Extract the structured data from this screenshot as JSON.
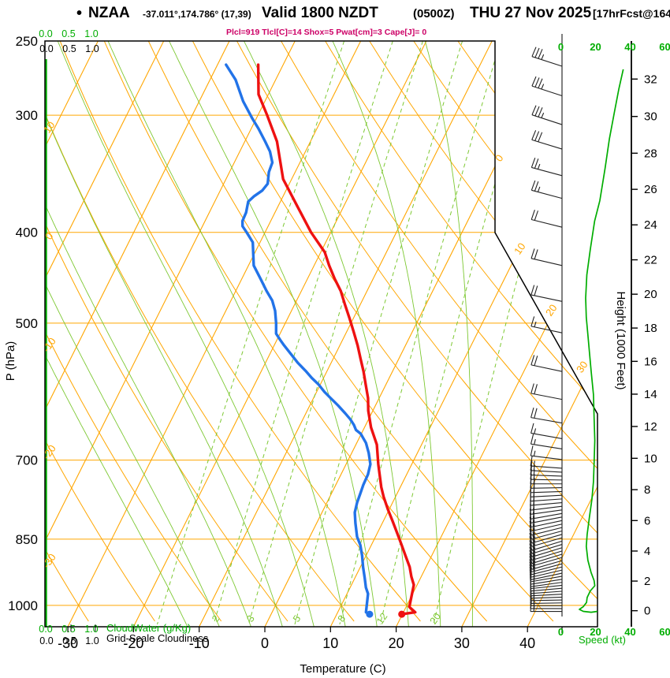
{
  "header": {
    "bullet": "•",
    "station": "NZAA",
    "coords": "-37.011°,174.786° (17,39)",
    "valid": "Valid 1800 NZDT",
    "valid_z": "(0500Z)",
    "date": "THU 27 Nov 2025",
    "fcst": "[17hrFcst@1648z]",
    "indices": "Plcl=919 Tlcl[C]=14 Shox=5 Pwat[cm]=3 Cape[J]= 0"
  },
  "labels": {
    "pressure_axis": "P (hPa)",
    "temperature_axis": "Temperature (C)",
    "height_axis": "Height (1000 Feet)",
    "speed_axis": "Speed (kt)",
    "cloudwater": "CloudWater (g/Kg)",
    "cloudiness": "Grid-Scale Cloudiness"
  },
  "axes": {
    "pressure_ticks": [
      250,
      300,
      400,
      500,
      700,
      850,
      1000
    ],
    "temp_ticks": [
      -30,
      -20,
      -10,
      0,
      10,
      20,
      30,
      40
    ],
    "height_ticks": [
      0,
      2,
      4,
      6,
      8,
      10,
      12,
      14,
      16,
      18,
      20,
      22,
      24,
      26,
      28,
      30,
      32
    ],
    "speed_ticks": [
      0,
      20,
      40,
      60
    ],
    "cloud_scale": [
      "0.0",
      "0.5",
      "1.0"
    ]
  },
  "grid": {
    "isotherms_c": [
      -100,
      -90,
      -80,
      -70,
      -60,
      -50,
      -40,
      -30,
      -20,
      -10,
      0,
      10,
      20,
      30,
      40
    ],
    "isotherm_edge_labels": [
      0,
      10,
      20,
      30
    ],
    "dry_adiabats_c": [
      -30,
      -20,
      -10,
      0,
      10,
      20,
      30,
      40,
      50,
      60,
      70,
      80,
      90,
      100,
      110,
      120
    ],
    "dry_adiabat_labels": [
      10,
      0,
      -10,
      -20,
      -30
    ],
    "moist_adiabats_c": [
      -15,
      -10,
      -5,
      0,
      5,
      10,
      15,
      20,
      25,
      30
    ],
    "mixing_ratio_gkg": [
      1,
      2,
      3,
      5,
      8,
      12,
      20
    ],
    "mixing_ratio_labels": [
      2,
      3,
      5,
      8,
      12,
      20
    ]
  },
  "colors": {
    "orange": "#ffa600",
    "lightgreen": "#7dc832",
    "green": "#00ad00",
    "red": "#ee1111",
    "blue": "#2273e8",
    "magenta": "#cc0066",
    "barb": "#222222",
    "black": "#000000"
  },
  "chart_data": {
    "type": "line",
    "station": "NZAA",
    "pressure_range_hpa": [
      250,
      1052
    ],
    "surface": {
      "p": 1022,
      "t_c": 19.9,
      "td_c": 15.0
    },
    "temperature_C": [
      [
        265,
        -43.8
      ],
      [
        285,
        -41.5
      ],
      [
        300,
        -38.6
      ],
      [
        320,
        -35.1
      ],
      [
        351,
        -31.3
      ],
      [
        375,
        -27.1
      ],
      [
        400,
        -23.0
      ],
      [
        420,
        -19.4
      ],
      [
        434,
        -17.7
      ],
      [
        448,
        -15.9
      ],
      [
        462,
        -14.0
      ],
      [
        477,
        -12.4
      ],
      [
        494,
        -10.6
      ],
      [
        510,
        -9.0
      ],
      [
        528,
        -7.3
      ],
      [
        546,
        -5.8
      ],
      [
        563,
        -4.4
      ],
      [
        581,
        -3.1
      ],
      [
        601,
        -1.7
      ],
      [
        620,
        -0.7
      ],
      [
        646,
        1.0
      ],
      [
        674,
        3.2
      ],
      [
        707,
        4.9
      ],
      [
        748,
        7.1
      ],
      [
        766,
        8.2
      ],
      [
        790,
        9.8
      ],
      [
        813,
        11.4
      ],
      [
        837,
        13.0
      ],
      [
        862,
        14.6
      ],
      [
        885,
        16.0
      ],
      [
        910,
        17.5
      ],
      [
        932,
        18.5
      ],
      [
        951,
        19.5
      ],
      [
        1004,
        20.5
      ],
      [
        1017,
        21.8
      ],
      [
        1022,
        19.9
      ]
    ],
    "dewpoint_C": [
      [
        265,
        -48.7
      ],
      [
        275,
        -46.1
      ],
      [
        290,
        -43.3
      ],
      [
        302,
        -40.7
      ],
      [
        310,
        -38.9
      ],
      [
        320,
        -36.9
      ],
      [
        328,
        -35.4
      ],
      [
        337,
        -34.2
      ],
      [
        345,
        -34.0
      ],
      [
        355,
        -33.3
      ],
      [
        361,
        -33.6
      ],
      [
        366,
        -34.4
      ],
      [
        371,
        -34.9
      ],
      [
        381,
        -34.4
      ],
      [
        389,
        -34.3
      ],
      [
        394,
        -33.9
      ],
      [
        400,
        -32.8
      ],
      [
        410,
        -31.1
      ],
      [
        434,
        -29.2
      ],
      [
        448,
        -27.2
      ],
      [
        462,
        -25.3
      ],
      [
        473,
        -23.7
      ],
      [
        485,
        -22.5
      ],
      [
        500,
        -21.4
      ],
      [
        513,
        -20.6
      ],
      [
        521,
        -19.5
      ],
      [
        528,
        -18.5
      ],
      [
        536,
        -17.3
      ],
      [
        551,
        -15.1
      ],
      [
        562,
        -13.3
      ],
      [
        572,
        -11.8
      ],
      [
        581,
        -10.3
      ],
      [
        592,
        -8.8
      ],
      [
        601,
        -7.4
      ],
      [
        612,
        -5.7
      ],
      [
        624,
        -4.0
      ],
      [
        633,
        -2.8
      ],
      [
        642,
        -1.8
      ],
      [
        650,
        -1.1
      ],
      [
        656,
        -0.1
      ],
      [
        671,
        1.4
      ],
      [
        688,
        2.6
      ],
      [
        707,
        3.7
      ],
      [
        725,
        4.1
      ],
      [
        744,
        4.2
      ],
      [
        760,
        4.4
      ],
      [
        777,
        4.6
      ],
      [
        796,
        5.0
      ],
      [
        817,
        5.9
      ],
      [
        845,
        7.2
      ],
      [
        862,
        8.3
      ],
      [
        885,
        9.4
      ],
      [
        910,
        10.4
      ],
      [
        935,
        11.5
      ],
      [
        957,
        12.4
      ],
      [
        972,
        13.2
      ],
      [
        1017,
        14.3
      ],
      [
        1022,
        15.0
      ]
    ],
    "wind_barbs_p_kt_tilt": [
      [
        266,
        35,
        18
      ],
      [
        286,
        35,
        18
      ],
      [
        307,
        35,
        18
      ],
      [
        326,
        30,
        17
      ],
      [
        348,
        25,
        15
      ],
      [
        368,
        25,
        15
      ],
      [
        395,
        20,
        14
      ],
      [
        434,
        20,
        13
      ],
      [
        474,
        20,
        12
      ],
      [
        512,
        15,
        12
      ],
      [
        563,
        20,
        12
      ],
      [
        603,
        20,
        11
      ],
      [
        639,
        20,
        10
      ],
      [
        664,
        15,
        10
      ],
      [
        681,
        15,
        9
      ],
      [
        699,
        15,
        7
      ],
      [
        714,
        15,
        4
      ],
      [
        721,
        15,
        3
      ],
      [
        728,
        15,
        2
      ],
      [
        735,
        15,
        1
      ],
      [
        742,
        15,
        0
      ],
      [
        749,
        20,
        -1
      ],
      [
        756,
        20,
        -2
      ],
      [
        763,
        20,
        -3
      ],
      [
        770,
        20,
        -4
      ],
      [
        777,
        20,
        -5
      ],
      [
        784,
        20,
        -7
      ],
      [
        791,
        20,
        -8
      ],
      [
        798,
        20,
        -10
      ],
      [
        805,
        20,
        -11
      ],
      [
        812,
        20,
        -12
      ],
      [
        819,
        20,
        -13
      ],
      [
        826,
        20,
        -14
      ],
      [
        833,
        20,
        -15
      ],
      [
        840,
        20,
        -16
      ],
      [
        847,
        20,
        -16
      ],
      [
        854,
        20,
        -17
      ],
      [
        861,
        20,
        -17
      ],
      [
        868,
        20,
        -17
      ],
      [
        875,
        20,
        -17
      ],
      [
        882,
        20,
        -17
      ],
      [
        889,
        20,
        -16
      ],
      [
        896,
        20,
        -16
      ],
      [
        903,
        20,
        -15
      ],
      [
        910,
        20,
        -14
      ],
      [
        917,
        20,
        -13
      ],
      [
        924,
        15,
        -12
      ],
      [
        931,
        15,
        -10
      ],
      [
        938,
        15,
        -9
      ],
      [
        945,
        15,
        -8
      ],
      [
        952,
        15,
        -6
      ],
      [
        959,
        15,
        -5
      ],
      [
        966,
        15,
        -4
      ],
      [
        973,
        15,
        -3
      ],
      [
        980,
        15,
        -2
      ],
      [
        987,
        15,
        -1
      ],
      [
        994,
        15,
        -1
      ],
      [
        1001,
        15,
        0
      ],
      [
        1008,
        15,
        0
      ],
      [
        1015,
        15,
        0
      ]
    ],
    "wind_speed_kt": [
      [
        268,
        36
      ],
      [
        281,
        33.5
      ],
      [
        297,
        31
      ],
      [
        318,
        28
      ],
      [
        342,
        25.5
      ],
      [
        370,
        22.5
      ],
      [
        389,
        19.5
      ],
      [
        417,
        17
      ],
      [
        444,
        15
      ],
      [
        470,
        14.3
      ],
      [
        493,
        14.7
      ],
      [
        512,
        15.5
      ],
      [
        537,
        16.5
      ],
      [
        563,
        17.5
      ],
      [
        596,
        18.8
      ],
      [
        630,
        19.2
      ],
      [
        667,
        19.6
      ],
      [
        706,
        19.2
      ],
      [
        738,
        18.8
      ],
      [
        771,
        17.9
      ],
      [
        805,
        16.5
      ],
      [
        840,
        15.2
      ],
      [
        865,
        14.7
      ],
      [
        895,
        15.6
      ],
      [
        922,
        17.4
      ],
      [
        941,
        19.2
      ],
      [
        953,
        19.6
      ],
      [
        965,
        17
      ],
      [
        981,
        15.2
      ],
      [
        993,
        14.8
      ],
      [
        1003,
        13
      ],
      [
        1010,
        10.7
      ],
      [
        1015,
        13
      ],
      [
        1017,
        17.5
      ],
      [
        1015,
        21.1
      ]
    ],
    "cloudwater_gkg_profile": 0,
    "grid_scale_cloudiness_profile": 0
  }
}
